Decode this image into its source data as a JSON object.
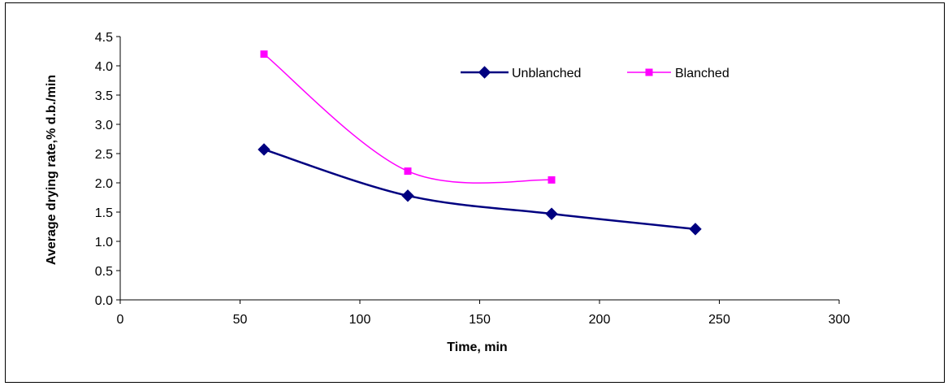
{
  "chart_data": {
    "type": "line",
    "xlabel": "Time, min",
    "ylabel": "Average drying rate,% d.b./min",
    "xlim": [
      0,
      300
    ],
    "ylim": [
      0,
      4.5
    ],
    "xticks": [
      0,
      50,
      100,
      150,
      200,
      250,
      300
    ],
    "yticks": [
      "0.0",
      "0.5",
      "1.0",
      "1.5",
      "2.0",
      "2.5",
      "3.0",
      "3.5",
      "4.0",
      "4.5"
    ],
    "grid": false,
    "legend_position": "top-right",
    "series": [
      {
        "name": "Unblanched",
        "x": [
          60,
          120,
          180,
          240
        ],
        "values": [
          2.57,
          1.78,
          1.47,
          1.21
        ],
        "color": "#000080",
        "marker": "diamond",
        "smooth": true
      },
      {
        "name": "Blanched",
        "x": [
          60,
          120,
          180
        ],
        "values": [
          4.2,
          2.2,
          2.05
        ],
        "color": "#ff00ff",
        "marker": "square",
        "smooth": true
      }
    ]
  }
}
